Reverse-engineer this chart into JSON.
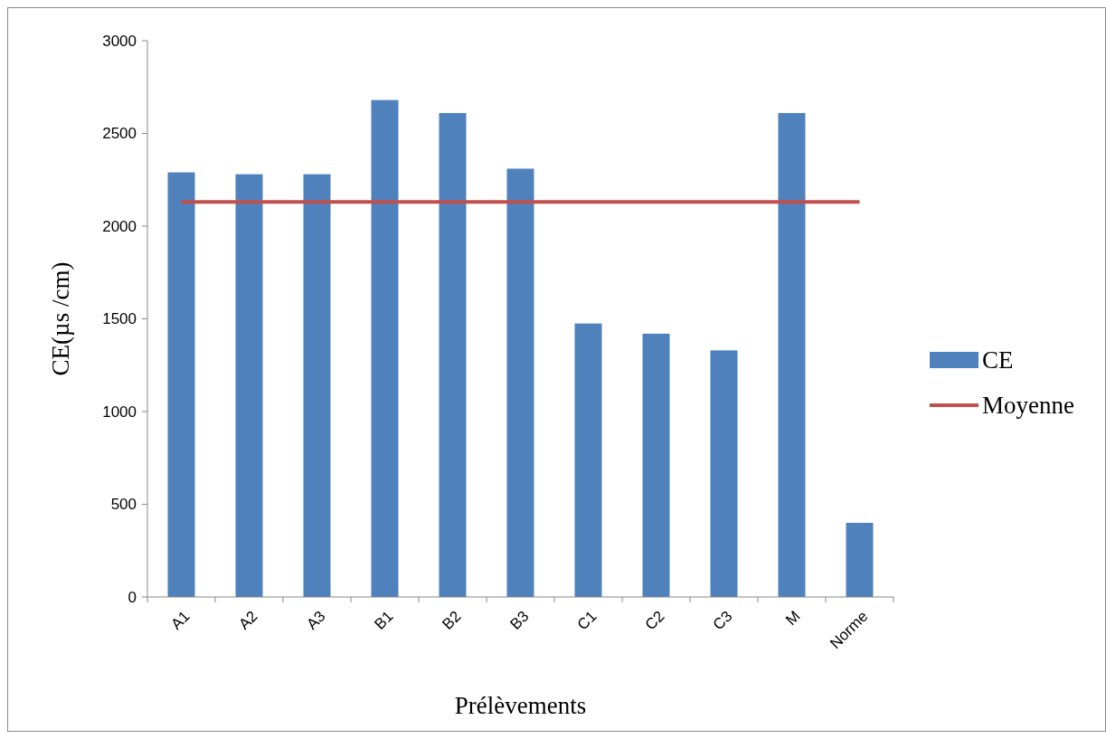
{
  "chart_data": {
    "type": "bar",
    "xlabel": "Prélèvements",
    "ylabel": "CE(µs /cm)",
    "categories": [
      "A1",
      "A2",
      "A3",
      "B1",
      "B2",
      "B3",
      "C1",
      "C2",
      "C3",
      "M",
      "Norme"
    ],
    "series": [
      {
        "name": "CE",
        "color": "#4f81bd",
        "values": [
          2290,
          2280,
          2280,
          2680,
          2610,
          2310,
          1475,
          1420,
          1330,
          2610,
          400
        ]
      },
      {
        "name": "Moyenne",
        "type": "line",
        "color": "#c0504d",
        "values": [
          2130,
          2130,
          2130,
          2130,
          2130,
          2130,
          2130,
          2130,
          2130,
          2130,
          2130
        ]
      }
    ],
    "ylim": [
      0,
      3000
    ],
    "yticks": [
      0,
      500,
      1000,
      1500,
      2000,
      2500,
      3000
    ],
    "grid": false,
    "legend": "right"
  }
}
